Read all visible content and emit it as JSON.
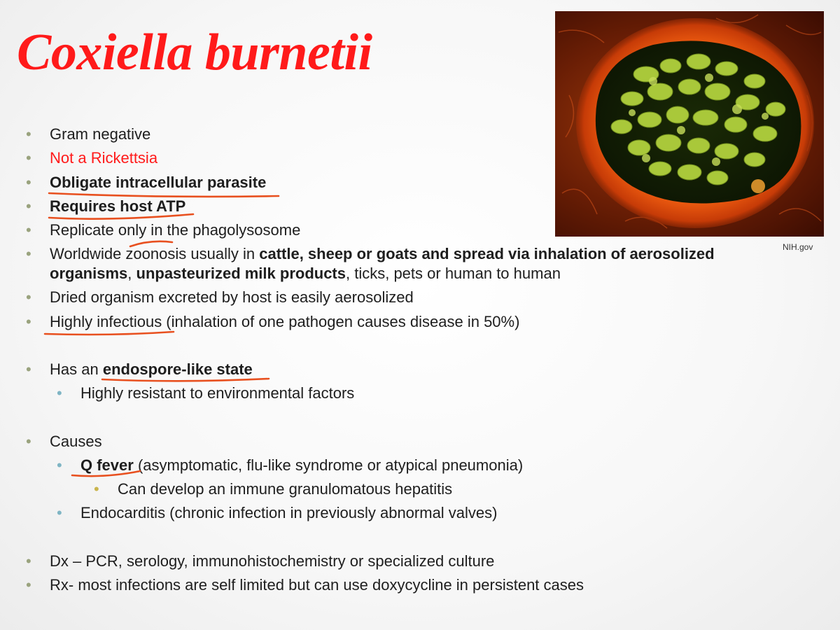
{
  "title": "Coxiella burnetii",
  "image_credit": "NIH.gov",
  "image_description": "Electron micrograph of a host cell filled with bacteria",
  "bullets": {
    "b1": "Gram negative",
    "b2": "Not a Rickettsia",
    "b3": "Obligate intracellular parasite",
    "b4": "Requires host ATP",
    "b5": "Replicate only in the phagolysosome",
    "b6_a": "Worldwide ",
    "b6_b": "zoonosis",
    "b6_c": " usually in ",
    "b6_d": "cattle, sheep or goats and spread via inhalation of aerosolized",
    "b6_e": "organisms",
    "b6_f": ", ",
    "b6_g": "unpasteurized milk products",
    "b6_h": ", ticks, pets or human to human",
    "b7": "Dried organism excreted by host is easily aerosolized",
    "b8_a": "Highly infectious",
    "b8_b": " (inhalation of one pathogen causes disease in 50%)",
    "b9_a": "Has an ",
    "b9_b": "endospore-like state",
    "b9_1": "Highly resistant to environmental factors",
    "b10": "Causes",
    "b10_1_a": "Q fever",
    "b10_1_b": " (asymptomatic, flu-like syndrome or atypical pneumonia)",
    "b10_1_1": "Can develop an immune granulomatous hepatitis",
    "b10_2": "Endocarditis (chronic infection in previously abnormal valves)",
    "b11": "Dx – PCR, serology, immunohistochemistry or specialized culture",
    "b12": "Rx- most infections are self limited but can use doxycycline in persistent cases"
  },
  "colors": {
    "title": "#ff1a1a",
    "highlight_text": "#ff1a1a",
    "annotation_ink": "#e8501f"
  }
}
